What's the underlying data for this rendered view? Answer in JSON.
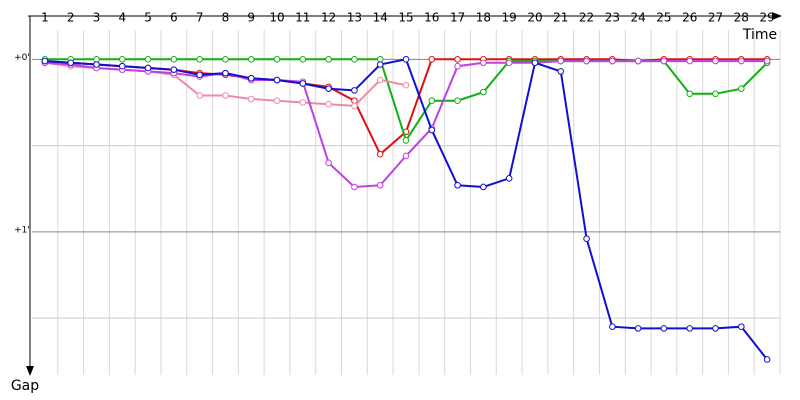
{
  "chart_data": {
    "type": "line",
    "x_axis_label": "Time",
    "y_axis_label": "Gap",
    "categories": [
      "1",
      "2",
      "3",
      "4",
      "5",
      "6",
      "7",
      "8",
      "9",
      "10",
      "11",
      "12",
      "13",
      "14",
      "15",
      "16",
      "17",
      "18",
      "19",
      "20",
      "21",
      "22",
      "23",
      "24",
      "25",
      "26",
      "27",
      "28",
      "29"
    ],
    "ylim": [
      -0.17,
      1.83
    ],
    "y_inverted": true,
    "yticks": [
      {
        "value": 0,
        "label": "+0'"
      },
      {
        "value": 1,
        "label": "+1'"
      }
    ],
    "minor_yticks": [
      0.5,
      1.5
    ],
    "grid": true,
    "series": [
      {
        "color": "#e01010",
        "values": [
          0.01,
          0.02,
          0.03,
          0.04,
          0.05,
          0.06,
          0.08,
          0.09,
          0.11,
          0.12,
          0.14,
          0.16,
          0.24,
          0.55,
          0.42,
          0.0,
          0.0,
          0.0,
          0.0,
          0.0,
          0.0,
          0.0,
          0.0,
          0.01,
          0.0,
          0.0,
          0.0,
          0.0,
          0.0
        ]
      },
      {
        "color": "#10b010",
        "values": [
          0.0,
          0.0,
          0.0,
          0.0,
          0.0,
          0.0,
          0.0,
          0.0,
          0.0,
          0.0,
          0.0,
          0.0,
          0.0,
          0.0,
          0.47,
          0.24,
          0.24,
          0.19,
          0.01,
          0.01,
          0.01,
          0.01,
          0.01,
          0.01,
          0.01,
          0.2,
          0.2,
          0.17,
          0.02
        ]
      },
      {
        "color": "#f08aa0",
        "values": [
          0.02,
          0.04,
          0.05,
          0.06,
          0.07,
          0.09,
          0.21,
          0.21,
          0.23,
          0.24,
          0.25,
          0.26,
          0.27,
          0.12,
          0.15,
          null,
          null,
          null,
          null,
          null,
          null,
          null,
          null,
          null,
          null,
          null,
          null,
          null,
          null
        ]
      },
      {
        "color": "#c040e0",
        "values": [
          0.02,
          0.03,
          0.05,
          0.06,
          0.07,
          0.08,
          0.1,
          0.08,
          0.12,
          0.12,
          0.13,
          0.6,
          0.74,
          0.73,
          0.56,
          0.4,
          0.04,
          0.02,
          0.02,
          0.02,
          0.01,
          0.01,
          0.01,
          0.01,
          0.01,
          0.01,
          0.01,
          0.01,
          0.01
        ]
      },
      {
        "color": "#1010d0",
        "values": [
          0.01,
          0.02,
          0.03,
          0.04,
          0.05,
          0.06,
          0.09,
          0.08,
          0.11,
          0.12,
          0.14,
          0.17,
          0.18,
          0.03,
          0.0,
          0.41,
          0.73,
          0.74,
          0.69,
          0.02,
          0.07,
          1.04,
          1.55,
          1.56,
          1.56,
          1.56,
          1.56,
          1.55,
          1.74
        ]
      }
    ]
  }
}
